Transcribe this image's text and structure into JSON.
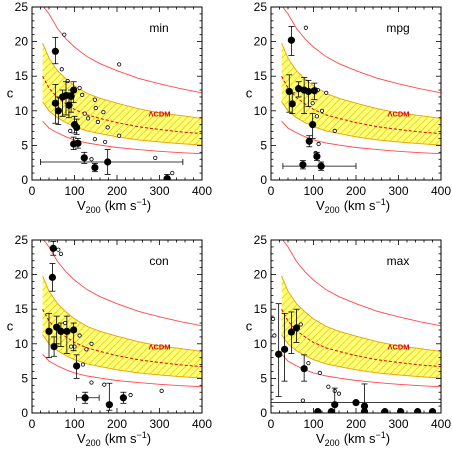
{
  "figure": {
    "colors": {
      "band_fill": "#ffff7a",
      "band_hatch": "#e8c400",
      "band_edge": "#e8a000",
      "median_line": "#e00000",
      "sigma_lines": "#ff4a4a",
      "points": "#000000",
      "lcdm_text": "#e00000"
    }
  },
  "chart_data": [
    {
      "type": "scatter",
      "panel_label": "min",
      "xlabel": "V200 (km s⁻¹)",
      "xlabel_main": "V",
      "xlabel_sub": "200",
      "xlabel_units": "(km s",
      "xlabel_sup": "−1",
      "xlabel_close": ")",
      "ylabel": "c",
      "xlim": [
        0,
        400
      ],
      "ylim": [
        0,
        25
      ],
      "xticks": [
        0,
        100,
        200,
        300,
        400
      ],
      "yticks": [
        0,
        5,
        10,
        15,
        20,
        25
      ],
      "band_label": "ΛCDM",
      "lcdm_model": {
        "x": [
          25,
          40,
          60,
          80,
          100,
          130,
          160,
          200,
          250,
          300,
          350,
          400
        ],
        "median": [
          15.0,
          13.3,
          11.9,
          11.0,
          10.2,
          9.4,
          8.9,
          8.3,
          7.7,
          7.3,
          6.95,
          6.7
        ],
        "upper_1sigma": [
          19.8,
          17.6,
          15.8,
          14.6,
          13.6,
          12.5,
          11.8,
          11.1,
          10.3,
          9.7,
          9.3,
          8.9
        ],
        "lower_1sigma": [
          11.3,
          10.0,
          9.0,
          8.3,
          7.7,
          7.1,
          6.7,
          6.25,
          5.8,
          5.5,
          5.25,
          5.05
        ],
        "upper_2sigma": [
          25.2,
          24.0,
          21.9,
          20.4,
          19.2,
          17.8,
          16.8,
          15.8,
          14.7,
          13.9,
          13.2,
          12.6
        ],
        "lower_2sigma": [
          8.5,
          7.5,
          6.8,
          6.25,
          5.8,
          5.35,
          5.05,
          4.7,
          4.4,
          4.15,
          3.95,
          3.8
        ]
      },
      "filled_points": [
        {
          "x": 55,
          "y": 18.6,
          "ylo": 16.8,
          "yhi": 20.6
        },
        {
          "x": 55,
          "y": 11.1,
          "ylo": 8.2,
          "yhi": 13.8
        },
        {
          "x": 62,
          "y": 10.0,
          "ylo": 8.0,
          "yhi": 12.0
        },
        {
          "x": 72,
          "y": 12.0,
          "ylo": 9.2,
          "yhi": 13.0
        },
        {
          "x": 80,
          "y": 12.2,
          "ylo": 9.4,
          "yhi": 14.2
        },
        {
          "x": 87,
          "y": 10.8,
          "ylo": 9.0,
          "yhi": 12.6
        },
        {
          "x": 92,
          "y": 12.1,
          "ylo": 9.8,
          "yhi": 13.0
        },
        {
          "x": 98,
          "y": 13.0,
          "ylo": 11.2,
          "yhi": 14.2
        },
        {
          "x": 100,
          "y": 8.0,
          "ylo": 6.8,
          "yhi": 9.2
        },
        {
          "x": 105,
          "y": 7.6,
          "ylo": 6.6,
          "yhi": 8.8
        },
        {
          "x": 98,
          "y": 5.2,
          "ylo": 4.4,
          "yhi": 6.2
        },
        {
          "x": 108,
          "y": 5.3,
          "ylo": 4.6,
          "yhi": 6.0
        },
        {
          "x": 123,
          "y": 3.2,
          "ylo": 2.4,
          "yhi": 4.0
        },
        {
          "x": 148,
          "y": 1.8,
          "ylo": 1.2,
          "yhi": 2.4
        },
        {
          "x": 178,
          "y": 2.6,
          "xlo": 20,
          "xhi": 355,
          "ylo": 0.8,
          "yhi": 4.4
        },
        {
          "x": 318,
          "y": 0.2,
          "ylo": 0,
          "yhi": 0.8
        }
      ],
      "open_points": [
        {
          "x": 76,
          "y": 21.0
        },
        {
          "x": 205,
          "y": 16.7
        },
        {
          "x": 70,
          "y": 16.0
        },
        {
          "x": 84,
          "y": 14.3
        },
        {
          "x": 112,
          "y": 13.3
        },
        {
          "x": 118,
          "y": 12.3
        },
        {
          "x": 148,
          "y": 11.6
        },
        {
          "x": 150,
          "y": 10.4
        },
        {
          "x": 168,
          "y": 9.8
        },
        {
          "x": 124,
          "y": 9.6
        },
        {
          "x": 132,
          "y": 8.9
        },
        {
          "x": 155,
          "y": 8.4
        },
        {
          "x": 178,
          "y": 7.6
        },
        {
          "x": 90,
          "y": 7.1
        },
        {
          "x": 205,
          "y": 6.4
        },
        {
          "x": 148,
          "y": 5.9
        },
        {
          "x": 172,
          "y": 5.5
        },
        {
          "x": 140,
          "y": 3.0
        },
        {
          "x": 290,
          "y": 3.2
        },
        {
          "x": 330,
          "y": 1.0
        }
      ]
    },
    {
      "type": "scatter",
      "panel_label": "mpg",
      "xlabel": "V200 (km s⁻¹)",
      "xlabel_main": "V",
      "xlabel_sub": "200",
      "xlabel_units": "(km s",
      "xlabel_sup": "−1",
      "xlabel_close": ")",
      "ylabel": "c",
      "xlim": [
        0,
        400
      ],
      "ylim": [
        0,
        25
      ],
      "xticks": [
        0,
        100,
        200,
        300,
        400
      ],
      "yticks": [
        0,
        5,
        10,
        15,
        20,
        25
      ],
      "band_label": "ΛCDM",
      "lcdm_model": {
        "x": [
          25,
          40,
          60,
          80,
          100,
          130,
          160,
          200,
          250,
          300,
          350,
          400
        ],
        "median": [
          15.0,
          13.3,
          11.9,
          11.0,
          10.2,
          9.4,
          8.9,
          8.3,
          7.7,
          7.3,
          6.95,
          6.7
        ],
        "upper_1sigma": [
          19.8,
          17.6,
          15.8,
          14.6,
          13.6,
          12.5,
          11.8,
          11.1,
          10.3,
          9.7,
          9.3,
          8.9
        ],
        "lower_1sigma": [
          11.3,
          10.0,
          9.0,
          8.3,
          7.7,
          7.1,
          6.7,
          6.25,
          5.8,
          5.5,
          5.25,
          5.05
        ],
        "upper_2sigma": [
          25.2,
          24.0,
          21.9,
          20.4,
          19.2,
          17.8,
          16.8,
          15.8,
          14.7,
          13.9,
          13.2,
          12.6
        ],
        "lower_2sigma": [
          8.5,
          7.5,
          6.8,
          6.25,
          5.8,
          5.35,
          5.05,
          4.7,
          4.4,
          4.15,
          3.95,
          3.8
        ]
      },
      "filled_points": [
        {
          "x": 48,
          "y": 20.2,
          "ylo": 18.0,
          "yhi": 22.2
        },
        {
          "x": 43,
          "y": 12.8,
          "ylo": 9.8,
          "yhi": 15.2
        },
        {
          "x": 50,
          "y": 11.0,
          "ylo": 9.6,
          "yhi": 12.6
        },
        {
          "x": 65,
          "y": 13.2,
          "ylo": 12.0,
          "yhi": 14.2
        },
        {
          "x": 78,
          "y": 13.0,
          "ylo": 9.6,
          "yhi": 14.8
        },
        {
          "x": 88,
          "y": 12.8,
          "ylo": 10.6,
          "yhi": 14.4
        },
        {
          "x": 98,
          "y": 8.0,
          "ylo": 6.0,
          "yhi": 9.6
        },
        {
          "x": 102,
          "y": 12.9,
          "ylo": 11.6,
          "yhi": 14.0
        },
        {
          "x": 90,
          "y": 5.6,
          "ylo": 4.8,
          "yhi": 6.4
        },
        {
          "x": 108,
          "y": 3.4,
          "ylo": 2.8,
          "yhi": 4.0
        },
        {
          "x": 118,
          "y": 2.0,
          "xlo": 28,
          "xhi": 200,
          "ylo": 1.4,
          "yhi": 2.6
        },
        {
          "x": 75,
          "y": 2.2,
          "ylo": 1.6,
          "yhi": 2.8
        }
      ],
      "open_points": [
        {
          "x": 82,
          "y": 22.0
        },
        {
          "x": 110,
          "y": 13.0
        },
        {
          "x": 130,
          "y": 12.6
        },
        {
          "x": 98,
          "y": 11.1
        },
        {
          "x": 120,
          "y": 10.0
        },
        {
          "x": 108,
          "y": 9.2
        },
        {
          "x": 150,
          "y": 7.1
        },
        {
          "x": 112,
          "y": 5.2
        },
        {
          "x": 105,
          "y": 3.9
        }
      ]
    },
    {
      "type": "scatter",
      "panel_label": "con",
      "xlabel": "V200 (km s⁻¹)",
      "xlabel_main": "V",
      "xlabel_sub": "200",
      "xlabel_units": "(km s",
      "xlabel_sup": "−1",
      "xlabel_close": ")",
      "ylabel": "c",
      "xlim": [
        0,
        400
      ],
      "ylim": [
        0,
        25
      ],
      "xticks": [
        0,
        100,
        200,
        300,
        400
      ],
      "yticks": [
        0,
        5,
        10,
        15,
        20,
        25
      ],
      "band_label": "ΛCDM",
      "lcdm_model": {
        "x": [
          25,
          40,
          60,
          80,
          100,
          130,
          160,
          200,
          250,
          300,
          350,
          400
        ],
        "median": [
          15.0,
          13.3,
          11.9,
          11.0,
          10.2,
          9.4,
          8.9,
          8.3,
          7.7,
          7.3,
          6.95,
          6.7
        ],
        "upper_1sigma": [
          19.8,
          17.6,
          15.8,
          14.6,
          13.6,
          12.5,
          11.8,
          11.1,
          10.3,
          9.7,
          9.3,
          8.9
        ],
        "lower_1sigma": [
          11.3,
          10.0,
          9.0,
          8.3,
          7.7,
          7.1,
          6.7,
          6.25,
          5.8,
          5.5,
          5.25,
          5.05
        ],
        "upper_2sigma": [
          25.2,
          24.0,
          21.9,
          20.4,
          19.2,
          17.8,
          16.8,
          15.8,
          14.7,
          13.9,
          13.2,
          12.6
        ],
        "lower_2sigma": [
          8.5,
          7.5,
          6.8,
          6.25,
          5.8,
          5.35,
          5.05,
          4.7,
          4.4,
          4.15,
          3.95,
          3.8
        ]
      },
      "filled_points": [
        {
          "x": 50,
          "y": 23.8,
          "ylo": 22.8,
          "yhi": 24.8
        },
        {
          "x": 48,
          "y": 19.6,
          "ylo": 17.6,
          "yhi": 21.6
        },
        {
          "x": 40,
          "y": 11.8,
          "ylo": 8.0,
          "yhi": 14.4
        },
        {
          "x": 52,
          "y": 9.6,
          "ylo": 8.2,
          "yhi": 11.0
        },
        {
          "x": 58,
          "y": 12.4,
          "ylo": 10.0,
          "yhi": 14.0
        },
        {
          "x": 68,
          "y": 11.8,
          "ylo": 9.6,
          "yhi": 13.0
        },
        {
          "x": 82,
          "y": 11.8,
          "ylo": 8.6,
          "yhi": 14.0
        },
        {
          "x": 98,
          "y": 12.0,
          "ylo": 9.0,
          "yhi": 13.0
        },
        {
          "x": 105,
          "y": 6.8,
          "ylo": 5.0,
          "yhi": 8.4
        },
        {
          "x": 125,
          "y": 2.2,
          "xlo": 105,
          "xhi": 158,
          "ylo": 1.4,
          "yhi": 3.0
        },
        {
          "x": 182,
          "y": 1.2,
          "ylo": 0.4,
          "yhi": 4.3
        },
        {
          "x": 215,
          "y": 2.2,
          "ylo": 1.4,
          "yhi": 3.0
        }
      ],
      "open_points": [
        {
          "x": 62,
          "y": 23.6
        },
        {
          "x": 68,
          "y": 23.0
        },
        {
          "x": 78,
          "y": 13.0
        },
        {
          "x": 92,
          "y": 9.6
        },
        {
          "x": 100,
          "y": 9.6
        },
        {
          "x": 112,
          "y": 11.2
        },
        {
          "x": 128,
          "y": 9.2
        },
        {
          "x": 140,
          "y": 10.0
        },
        {
          "x": 120,
          "y": 7.0
        },
        {
          "x": 140,
          "y": 4.4
        },
        {
          "x": 170,
          "y": 4.1
        },
        {
          "x": 232,
          "y": 2.6
        },
        {
          "x": 305,
          "y": 3.2
        }
      ]
    },
    {
      "type": "scatter",
      "panel_label": "max",
      "xlabel": "V200 (km s⁻¹)",
      "xlabel_main": "V",
      "xlabel_sub": "200",
      "xlabel_units": "(km s",
      "xlabel_sup": "−1",
      "xlabel_close": ")",
      "ylabel": "c",
      "xlim": [
        0,
        400
      ],
      "ylim": [
        0,
        25
      ],
      "xticks": [
        0,
        100,
        200,
        300,
        400
      ],
      "yticks": [
        0,
        5,
        10,
        15,
        20,
        25
      ],
      "band_label": "ΛCDM",
      "lcdm_model": {
        "x": [
          25,
          40,
          60,
          80,
          100,
          130,
          160,
          200,
          250,
          300,
          350,
          400
        ],
        "median": [
          15.0,
          13.3,
          11.9,
          11.0,
          10.2,
          9.4,
          8.9,
          8.3,
          7.7,
          7.3,
          6.95,
          6.7
        ],
        "upper_1sigma": [
          19.8,
          17.6,
          15.8,
          14.6,
          13.6,
          12.5,
          11.8,
          11.1,
          10.3,
          9.7,
          9.3,
          8.9
        ],
        "lower_1sigma": [
          11.3,
          10.0,
          9.0,
          8.3,
          7.7,
          7.1,
          6.7,
          6.25,
          5.8,
          5.5,
          5.25,
          5.05
        ],
        "upper_2sigma": [
          25.2,
          24.0,
          21.9,
          20.4,
          19.2,
          17.8,
          16.8,
          15.8,
          14.7,
          13.9,
          13.2,
          12.6
        ],
        "lower_2sigma": [
          8.5,
          7.5,
          6.8,
          6.25,
          5.8,
          5.35,
          5.05,
          4.7,
          4.4,
          4.15,
          3.95,
          3.8
        ]
      },
      "filled_points": [
        {
          "x": 18,
          "y": 8.5,
          "ylo": 2.4,
          "yhi": 15.8
        },
        {
          "x": 32,
          "y": 9.2,
          "ylo": 4.6,
          "yhi": 14.4
        },
        {
          "x": 48,
          "y": 11.7,
          "ylo": 8.6,
          "yhi": 14.6
        },
        {
          "x": 60,
          "y": 12.3,
          "ylo": 10.2,
          "yhi": 15.0
        },
        {
          "x": 78,
          "y": 6.4,
          "ylo": 4.6,
          "yhi": 8.4
        },
        {
          "x": 150,
          "y": 1.2,
          "ylo": 0,
          "yhi": 3.6
        },
        {
          "x": 220,
          "y": 1.0,
          "ylo": 0,
          "yhi": 4.2
        },
        {
          "x": 110,
          "y": 0.2
        },
        {
          "x": 142,
          "y": 0.2
        },
        {
          "x": 220,
          "y": 0.2
        },
        {
          "x": 268,
          "y": 0.2
        },
        {
          "x": 305,
          "y": 0.2
        },
        {
          "x": 345,
          "y": 0.2
        },
        {
          "x": 380,
          "y": 0.2
        },
        {
          "x": 200,
          "y": 1.5,
          "xlo": 0,
          "xhi": 400
        }
      ],
      "open_points": [
        {
          "x": 70,
          "y": 12.8
        },
        {
          "x": 88,
          "y": 7.2
        },
        {
          "x": 115,
          "y": 5.8
        },
        {
          "x": 135,
          "y": 3.8
        },
        {
          "x": 150,
          "y": 3.2
        },
        {
          "x": 160,
          "y": 2.8
        },
        {
          "x": 75,
          "y": 1.8
        },
        {
          "x": 5,
          "y": 13.6
        },
        {
          "x": 8,
          "y": 11.2
        }
      ]
    }
  ]
}
